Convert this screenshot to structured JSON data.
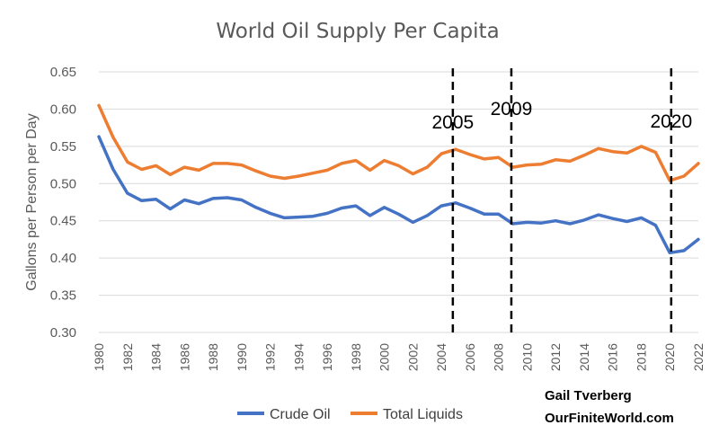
{
  "chart_data": {
    "type": "line",
    "title": "World Oil Supply Per Capita",
    "ylabel": "Gallons per Person per Day",
    "xlabel": "",
    "ylim": [
      0.3,
      0.65
    ],
    "yticks": [
      "0.30",
      "0.35",
      "0.40",
      "0.45",
      "0.50",
      "0.55",
      "0.60",
      "0.65"
    ],
    "xticks": [
      "1980",
      "1982",
      "1984",
      "1986",
      "1988",
      "1990",
      "1992",
      "1994",
      "1996",
      "1998",
      "2000",
      "2002",
      "2004",
      "2006",
      "2008",
      "2010",
      "2012",
      "2014",
      "2016",
      "2018",
      "2020",
      "2022"
    ],
    "grid": true,
    "legend_position": "bottom",
    "x": [
      1980,
      1981,
      1982,
      1983,
      1984,
      1985,
      1986,
      1987,
      1988,
      1989,
      1990,
      1991,
      1992,
      1993,
      1994,
      1995,
      1996,
      1997,
      1998,
      1999,
      2000,
      2001,
      2002,
      2003,
      2004,
      2005,
      2006,
      2007,
      2008,
      2009,
      2010,
      2011,
      2012,
      2013,
      2014,
      2015,
      2016,
      2017,
      2018,
      2019,
      2020,
      2021,
      2022
    ],
    "series": [
      {
        "name": "Crude Oil",
        "color": "#4472C4",
        "values": [
          0.563,
          0.519,
          0.487,
          0.477,
          0.479,
          0.466,
          0.478,
          0.473,
          0.48,
          0.481,
          0.478,
          0.468,
          0.46,
          0.454,
          0.455,
          0.456,
          0.46,
          0.467,
          0.47,
          0.457,
          0.468,
          0.459,
          0.448,
          0.457,
          0.47,
          0.474,
          0.467,
          0.459,
          0.459,
          0.446,
          0.448,
          0.447,
          0.45,
          0.446,
          0.451,
          0.458,
          0.453,
          0.449,
          0.454,
          0.444,
          0.407,
          0.41,
          0.425
        ]
      },
      {
        "name": "Total Liquids",
        "color": "#ED7D31",
        "values": [
          0.605,
          0.562,
          0.529,
          0.519,
          0.524,
          0.512,
          0.522,
          0.518,
          0.527,
          0.527,
          0.525,
          0.517,
          0.51,
          0.507,
          0.51,
          0.514,
          0.518,
          0.527,
          0.531,
          0.518,
          0.531,
          0.524,
          0.513,
          0.522,
          0.54,
          0.546,
          0.539,
          0.533,
          0.535,
          0.522,
          0.525,
          0.526,
          0.532,
          0.53,
          0.538,
          0.547,
          0.543,
          0.541,
          0.55,
          0.542,
          0.504,
          0.51,
          0.527
        ]
      }
    ],
    "markers": [
      {
        "label": "2005",
        "x": 2004.8
      },
      {
        "label": "2009",
        "x": 2008.9
      },
      {
        "label": "2020",
        "x": 2020.1
      }
    ]
  },
  "credit": {
    "author": "Gail Tverberg",
    "site": "OurFiniteWorld.com"
  }
}
